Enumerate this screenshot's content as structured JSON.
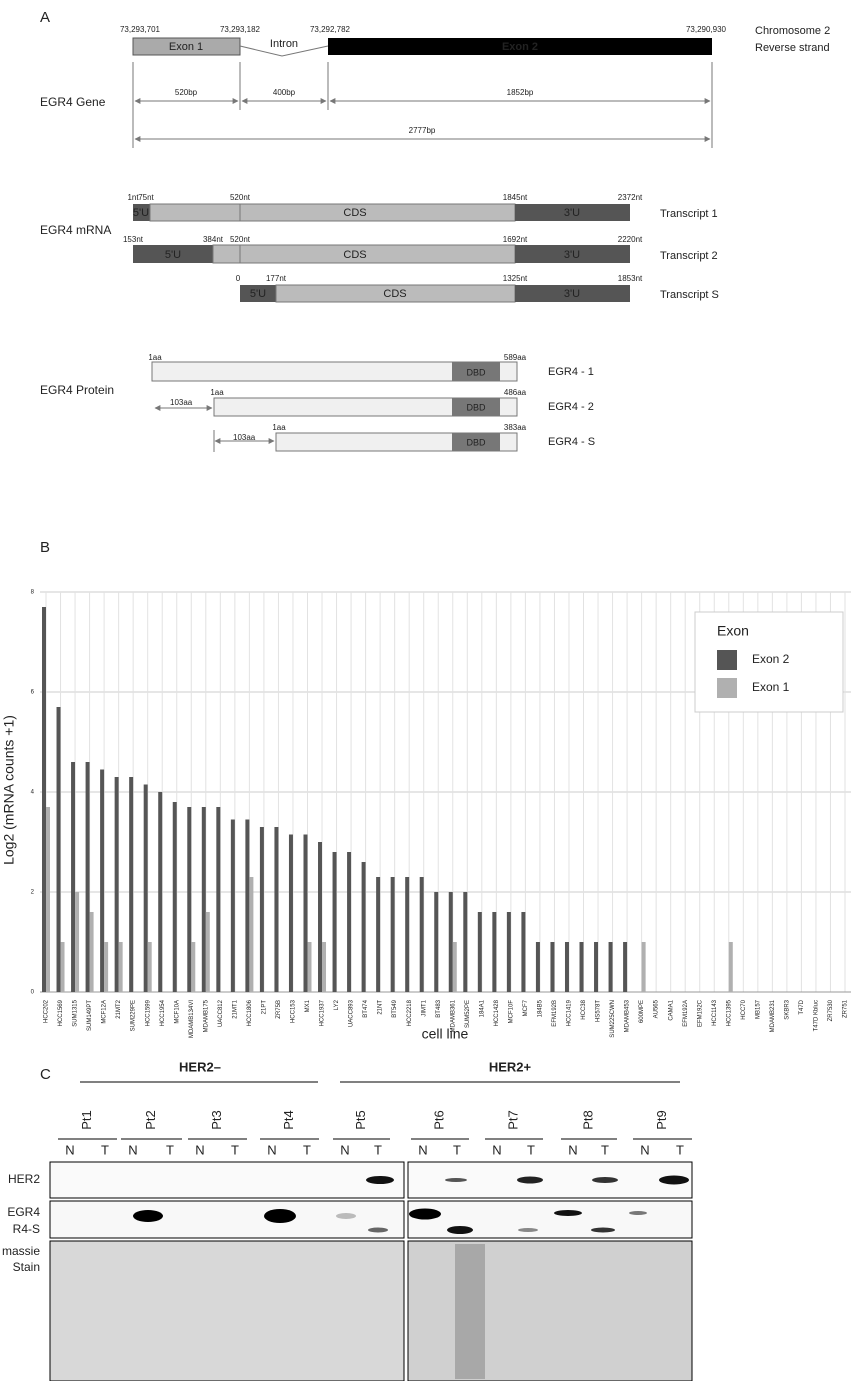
{
  "panel_a": {
    "label": "A",
    "gene": {
      "row_label": "EGR4 Gene",
      "coords": [
        "73,293,701",
        "73,293,182",
        "73,292,782",
        "73,290,930"
      ],
      "strand": [
        "Chromosome 2",
        "Reverse strand"
      ],
      "exon1": "Exon 1",
      "intron": "Intron",
      "exon2": "Exon 2",
      "lengths": [
        "520bp",
        "400bp",
        "1852bp"
      ],
      "total": "2777bp"
    },
    "mrna": {
      "row_label": "EGR4 mRNA",
      "transcripts": [
        {
          "name": "Transcript 1",
          "positions": [
            "1nt",
            "75nt",
            "520nt",
            "1845nt",
            "2372nt"
          ],
          "segments": [
            "5'U",
            "CDS",
            "3'U"
          ]
        },
        {
          "name": "Transcript 2",
          "positions": [
            "153nt",
            "384nt",
            "520nt",
            "1692nt",
            "2220nt"
          ],
          "segments": [
            "5'U",
            "CDS",
            "3'U"
          ]
        },
        {
          "name": "Transcript S",
          "positions": [
            "0",
            "177nt",
            "1325nt",
            "1853nt"
          ],
          "segments": [
            "5'U",
            "CDS",
            "3'U"
          ]
        }
      ]
    },
    "protein": {
      "row_label": "EGR4 Protein",
      "isoforms": [
        {
          "name": "EGR4 - 1",
          "start": "1aa",
          "end": "589aa",
          "domain": "DBD"
        },
        {
          "name": "EGR4 - 2",
          "start": "1aa",
          "end": "486aa",
          "domain": "DBD",
          "offset": "103aa"
        },
        {
          "name": "EGR4 - S",
          "start": "1aa",
          "end": "383aa",
          "domain": "DBD",
          "offset": "103aa"
        }
      ]
    }
  },
  "panel_b": {
    "label": "B"
  },
  "chart_data": {
    "type": "bar",
    "x_label": "cell line",
    "y_label": "Log2  (mRNA counts +1)",
    "legend_title": "Exon",
    "legend_position": "upper right",
    "grid": true,
    "ylim": [
      0,
      8
    ],
    "yticks": [
      0,
      2,
      4,
      6,
      8
    ],
    "categories": [
      "HCC202",
      "HCC1569",
      "SUM1315",
      "SUM149PT",
      "MCF12A",
      "21MT2",
      "SUM229PE",
      "HCC1599",
      "HCC1954",
      "MCF10A",
      "MDAMB134VI",
      "MDAMB175",
      "UACC812",
      "21MT1",
      "HCC1806",
      "21PT",
      "ZR75B",
      "HCC153",
      "MX1",
      "HCC1937",
      "LY2",
      "UACC893",
      "BT474",
      "21NT",
      "BT549",
      "HCC2218",
      "JIMT1",
      "BT483",
      "MDAMB361",
      "SUM52PE",
      "184A1",
      "HCC1428",
      "MCF10F",
      "MCF7",
      "184B5",
      "EFM192B",
      "HCC1419",
      "HCC38",
      "HS578T",
      "SUM225CWN",
      "MDAMB453",
      "600MPE",
      "AU565",
      "CAMA1",
      "EFM192A",
      "EFM192C",
      "HCC1143",
      "HCC1395",
      "HCC70",
      "MB157",
      "MDAMB231",
      "SKBR3",
      "T47D",
      "T47D Kbluc",
      "ZR7530",
      "ZR751"
    ],
    "series": [
      {
        "name": "Exon 2",
        "color": "#555555",
        "values": [
          7.7,
          5.7,
          4.6,
          4.6,
          4.45,
          4.3,
          4.3,
          4.15,
          4.0,
          3.8,
          3.7,
          3.7,
          3.7,
          3.45,
          3.45,
          3.3,
          3.3,
          3.15,
          3.15,
          3.0,
          2.8,
          2.8,
          2.6,
          2.3,
          2.3,
          2.3,
          2.3,
          2.0,
          2.0,
          2.0,
          1.6,
          1.6,
          1.6,
          1.6,
          1,
          1,
          1,
          1,
          1,
          1,
          1,
          0,
          0,
          0,
          0,
          0,
          0,
          0,
          0,
          0,
          0,
          0,
          0,
          0,
          0,
          0
        ]
      },
      {
        "name": "Exon 1",
        "color": "#b0b0b0",
        "values": [
          3.7,
          1.0,
          2.0,
          1.6,
          1.0,
          1.0,
          0,
          1.0,
          0,
          0,
          1.0,
          1.6,
          0,
          0,
          2.3,
          0,
          0,
          0,
          1.0,
          1.0,
          0,
          0,
          0,
          0,
          0,
          0,
          0,
          0,
          1.0,
          0,
          0,
          0,
          0,
          0,
          0,
          0,
          0,
          0,
          0,
          0,
          0,
          1.0,
          0,
          0,
          0,
          0,
          0,
          1.0,
          0,
          0,
          0,
          0,
          0,
          0,
          0,
          0
        ]
      }
    ]
  },
  "panel_c": {
    "label": "C",
    "groups": [
      "HER2–",
      "HER2+"
    ],
    "patients": [
      {
        "label": "Pt1",
        "lanes": [
          "N",
          "T"
        ]
      },
      {
        "label": "Pt2",
        "lanes": [
          "N",
          "T"
        ]
      },
      {
        "label": "Pt3",
        "lanes": [
          "N",
          "T"
        ]
      },
      {
        "label": "Pt4",
        "lanes": [
          "N",
          "T"
        ]
      },
      {
        "label": "Pt5",
        "lanes": [
          "N",
          "T"
        ]
      },
      {
        "label": "Pt6",
        "lanes": [
          "N",
          "T"
        ]
      },
      {
        "label": "Pt7",
        "lanes": [
          "N",
          "T"
        ]
      },
      {
        "label": "Pt8",
        "lanes": [
          "N",
          "T"
        ]
      },
      {
        "label": "Pt9",
        "lanes": [
          "N",
          "T"
        ]
      }
    ],
    "rows": [
      "HER2",
      "EGR4",
      "R4-S",
      "massie",
      "Stain"
    ]
  }
}
